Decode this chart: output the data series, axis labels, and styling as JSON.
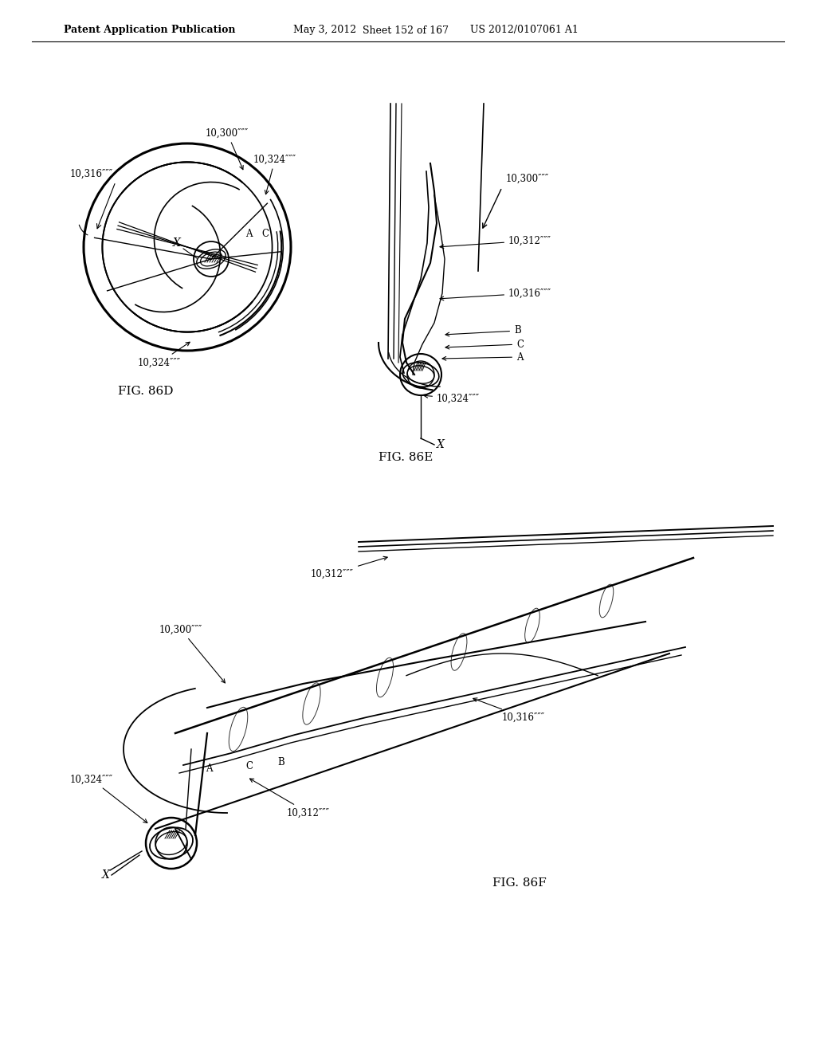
{
  "bg_color": "#ffffff",
  "line_color": "#000000",
  "header_text": "Patent Application Publication",
  "header_date": "May 3, 2012",
  "header_sheet": "Sheet 152 of 167",
  "header_patent": "US 2012/0107061 A1",
  "fig86d_label": "FIG. 86D",
  "fig86e_label": "FIG. 86E",
  "fig86f_label": "FIG. 86F",
  "label_10300": "10,300″″″",
  "label_10312": "10,312″″″",
  "label_10316": "10,316″″″",
  "label_10324": "10,324″″″",
  "label_A": "A",
  "label_B": "B",
  "label_C": "C",
  "label_X": "X",
  "font_size_header": 9,
  "font_size_label": 8.5,
  "font_size_fig": 11
}
